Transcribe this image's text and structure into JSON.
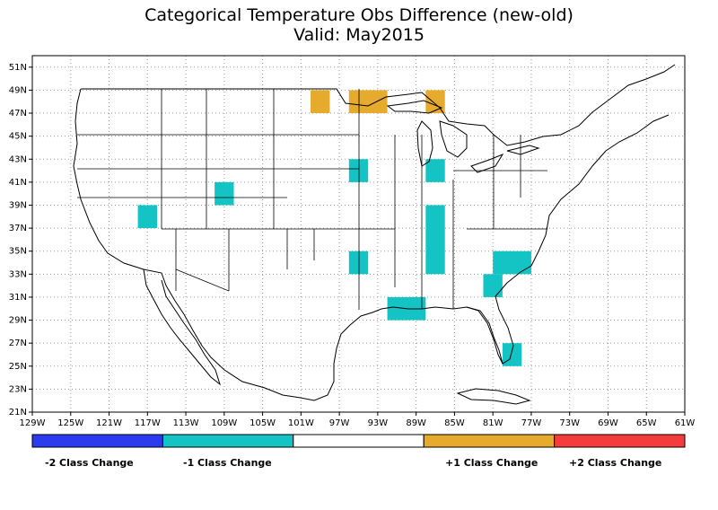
{
  "title": {
    "line1": "Categorical Temperature Obs Difference (new-old)",
    "line2": "Valid: May2015"
  },
  "axes": {
    "x_ticks": [
      "129W",
      "125W",
      "121W",
      "117W",
      "113W",
      "109W",
      "105W",
      "101W",
      "97W",
      "93W",
      "89W",
      "85W",
      "81W",
      "77W",
      "73W",
      "69W",
      "65W",
      "61W"
    ],
    "x_values": [
      -129,
      -125,
      -121,
      -117,
      -113,
      -109,
      -105,
      -101,
      -97,
      -93,
      -89,
      -85,
      -81,
      -77,
      -73,
      -69,
      -65,
      -61
    ],
    "y_ticks": [
      "21N",
      "23N",
      "25N",
      "27N",
      "29N",
      "31N",
      "33N",
      "35N",
      "37N",
      "39N",
      "41N",
      "43N",
      "45N",
      "47N",
      "49N",
      "51N"
    ],
    "y_values": [
      21,
      23,
      25,
      27,
      29,
      31,
      33,
      35,
      37,
      39,
      41,
      43,
      45,
      47,
      49,
      51
    ],
    "lon_range": [
      -129,
      -61
    ],
    "lat_range": [
      21,
      52
    ],
    "grid": "dotted"
  },
  "colors": {
    "minus2": "#2b3cf0",
    "minus1": "#14c4c4",
    "zero": "#ffffff",
    "plus1": "#e6aa2c",
    "plus2": "#f53c3c"
  },
  "legend": {
    "items": [
      {
        "label": "-2 Class Change",
        "color": "#2b3cf0"
      },
      {
        "label": "-1 Class Change",
        "color": "#14c4c4"
      },
      {
        "label": "",
        "color": "#ffffff"
      },
      {
        "label": "+1 Class Change",
        "color": "#e6aa2c"
      },
      {
        "label": "+2 Class Change",
        "color": "#f53c3c"
      }
    ]
  },
  "cells": [
    {
      "lon": [
        -100,
        -98
      ],
      "lat": [
        47,
        49
      ],
      "class": 1
    },
    {
      "lon": [
        -96,
        -92
      ],
      "lat": [
        47,
        49
      ],
      "class": 1
    },
    {
      "lon": [
        -88,
        -86
      ],
      "lat": [
        47,
        49
      ],
      "class": 1
    },
    {
      "lon": [
        -118,
        -116
      ],
      "lat": [
        37,
        39
      ],
      "class": -1
    },
    {
      "lon": [
        -110,
        -108
      ],
      "lat": [
        39,
        41
      ],
      "class": -1
    },
    {
      "lon": [
        -96,
        -94
      ],
      "lat": [
        41,
        43
      ],
      "class": -1
    },
    {
      "lon": [
        -88,
        -86
      ],
      "lat": [
        41,
        43
      ],
      "class": -1
    },
    {
      "lon": [
        -88,
        -86
      ],
      "lat": [
        33,
        39
      ],
      "class": -1
    },
    {
      "lon": [
        -96,
        -94
      ],
      "lat": [
        33,
        35
      ],
      "class": -1
    },
    {
      "lon": [
        -92,
        -88
      ],
      "lat": [
        29,
        31
      ],
      "class": -1
    },
    {
      "lon": [
        -82,
        -80
      ],
      "lat": [
        31,
        33
      ],
      "class": -1
    },
    {
      "lon": [
        -81,
        -77
      ],
      "lat": [
        33,
        35
      ],
      "class": -1
    },
    {
      "lon": [
        -80,
        -78
      ],
      "lat": [
        25,
        27
      ],
      "class": -1
    }
  ]
}
